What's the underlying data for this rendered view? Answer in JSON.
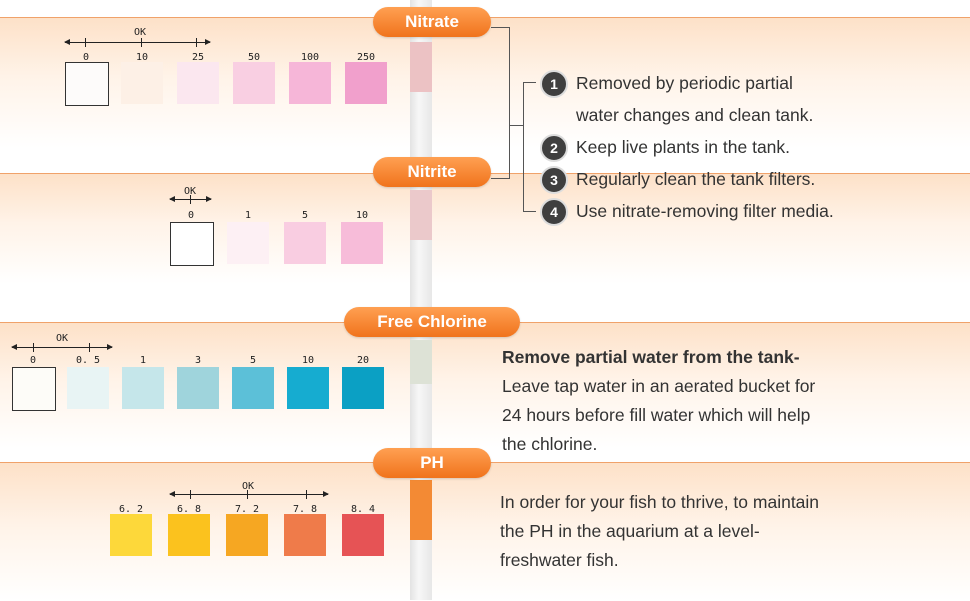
{
  "nitrate": {
    "title": "Nitrate",
    "ok": "OK",
    "swatches": [
      {
        "label": "0",
        "color": "#fdfbfa"
      },
      {
        "label": "10",
        "color": "#fdf0e6"
      },
      {
        "label": "25",
        "color": "#fbe7ef"
      },
      {
        "label": "50",
        "color": "#f9cfe2"
      },
      {
        "label": "100",
        "color": "#f6b6d8"
      },
      {
        "label": "250",
        "color": "#f1a0cc"
      }
    ]
  },
  "nitrite": {
    "title": "Nitrite",
    "ok": "OK",
    "swatches": [
      {
        "label": "0",
        "color": "#ffffff"
      },
      {
        "label": "1",
        "color": "#fdf0f4"
      },
      {
        "label": "5",
        "color": "#f9cde1"
      },
      {
        "label": "10",
        "color": "#f7bcd9"
      }
    ]
  },
  "tips": [
    {
      "num": "1",
      "text": "Removed by periodic partial"
    },
    {
      "num": "",
      "text": "water changes and clean tank."
    },
    {
      "num": "2",
      "text": "Keep live plants in the tank."
    },
    {
      "num": "3",
      "text": "Regularly clean the tank filters."
    },
    {
      "num": "4",
      "text": "Use nitrate-removing filter media."
    }
  ],
  "chlorine": {
    "title": "Free Chlorine",
    "ok": "OK",
    "swatches": [
      {
        "label": "0",
        "color": "#fdfcf8"
      },
      {
        "label": "0. 5",
        "color": "#e8f4f4"
      },
      {
        "label": "1",
        "color": "#c5e6ea"
      },
      {
        "label": "3",
        "color": "#9fd4dc"
      },
      {
        "label": "5",
        "color": "#5cc0d8"
      },
      {
        "label": "10",
        "color": "#16acd0"
      },
      {
        "label": "20",
        "color": "#0ba0c4"
      }
    ],
    "heading": "Remove partial water from the tank-",
    "lines": [
      "Leave tap water in an aerated bucket for",
      "24 hours before fill water which will help",
      "the chlorine."
    ]
  },
  "ph": {
    "title": "PH",
    "ok": "OK",
    "swatches": [
      {
        "label": "6. 2",
        "color": "#fdd83a"
      },
      {
        "label": "6. 8",
        "color": "#fbc21e"
      },
      {
        "label": "7. 2",
        "color": "#f6a722"
      },
      {
        "label": "7. 8",
        "color": "#ef7b4a"
      },
      {
        "label": "8. 4",
        "color": "#e65355"
      }
    ],
    "lines": [
      "In order for your fish to thrive, to maintain",
      "the PH in the aquarium at a level-",
      "freshwater fish."
    ]
  },
  "strip_pads": [
    {
      "color": "#ecc2c4"
    },
    {
      "color": "#ebc9cb"
    },
    {
      "color": "#dde2d6"
    },
    {
      "color": "#f38a34"
    }
  ]
}
